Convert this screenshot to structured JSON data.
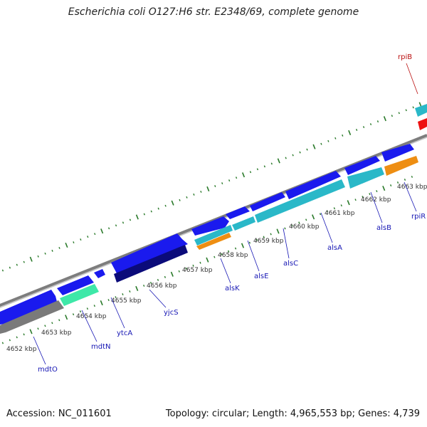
{
  "title": "Escherichia coli O127:H6 str. E2348/69, complete genome",
  "footer": {
    "accession": "Accession: NC_011601",
    "summary": "Topology: circular; Length: 4,965,553 bp; Genes: 4,739"
  },
  "colors": {
    "gene_blue": "#1a1aee",
    "gene_navy": "#0b0b7a",
    "cyan": "#2ab8c8",
    "light_green": "#3ee8a8",
    "orange": "#ee8e12",
    "red": "#ee1111",
    "gray": "#8a8a8a",
    "tick_green": "#2a7a2a",
    "label_blue": "#1616b4",
    "label_red": "#bb1111"
  },
  "kbp_labels": [
    "4652 kbp",
    "4653 kbp",
    "4654 kbp",
    "4655 kbp",
    "4656 kbp",
    "4657 kbp",
    "4658 kbp",
    "4659 kbp",
    "4660 kbp",
    "4661 kbp",
    "4662 kbp",
    "4663 kbp"
  ],
  "gene_labels": [
    {
      "name": "mdtO",
      "color": "label_blue"
    },
    {
      "name": "mdtN",
      "color": "label_blue"
    },
    {
      "name": "ytcA",
      "color": "label_blue"
    },
    {
      "name": "yjcS",
      "color": "label_blue"
    },
    {
      "name": "alsK",
      "color": "label_blue"
    },
    {
      "name": "alsE",
      "color": "label_blue"
    },
    {
      "name": "alsC",
      "color": "label_blue"
    },
    {
      "name": "alsA",
      "color": "label_blue"
    },
    {
      "name": "alsB",
      "color": "label_blue"
    },
    {
      "name": "rpiR",
      "color": "label_blue"
    },
    {
      "name": "rpiB",
      "color": "label_red"
    }
  ]
}
